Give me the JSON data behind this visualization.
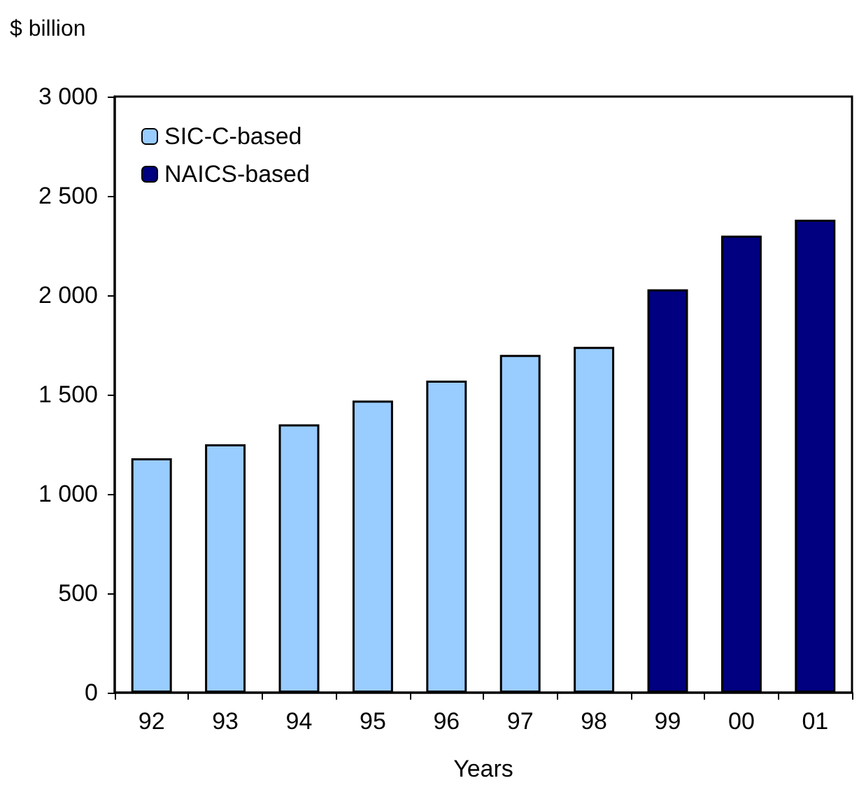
{
  "chart_data": {
    "type": "bar",
    "ylabel": "$ billion",
    "xlabel": "Years",
    "categories": [
      "92",
      "93",
      "94",
      "95",
      "96",
      "97",
      "98",
      "99",
      "00",
      "01"
    ],
    "series": [
      {
        "name": "SIC-C-based",
        "color": "#99ccff",
        "values": [
          1180,
          1250,
          1350,
          1470,
          1570,
          1700,
          1740,
          null,
          null,
          null
        ]
      },
      {
        "name": "NAICS-based",
        "color": "#000080",
        "values": [
          null,
          null,
          null,
          null,
          null,
          null,
          null,
          2030,
          2300,
          2380
        ]
      }
    ],
    "ylim": [
      0,
      3000
    ],
    "yticks": [
      {
        "value": 0,
        "label": "0"
      },
      {
        "value": 500,
        "label": "500"
      },
      {
        "value": 1000,
        "label": "1 000"
      },
      {
        "value": 1500,
        "label": "1 500"
      },
      {
        "value": 2000,
        "label": "2 000"
      },
      {
        "value": 2500,
        "label": "2 500"
      },
      {
        "value": 3000,
        "label": "3 000"
      }
    ],
    "grid": false,
    "legend": "top left"
  }
}
